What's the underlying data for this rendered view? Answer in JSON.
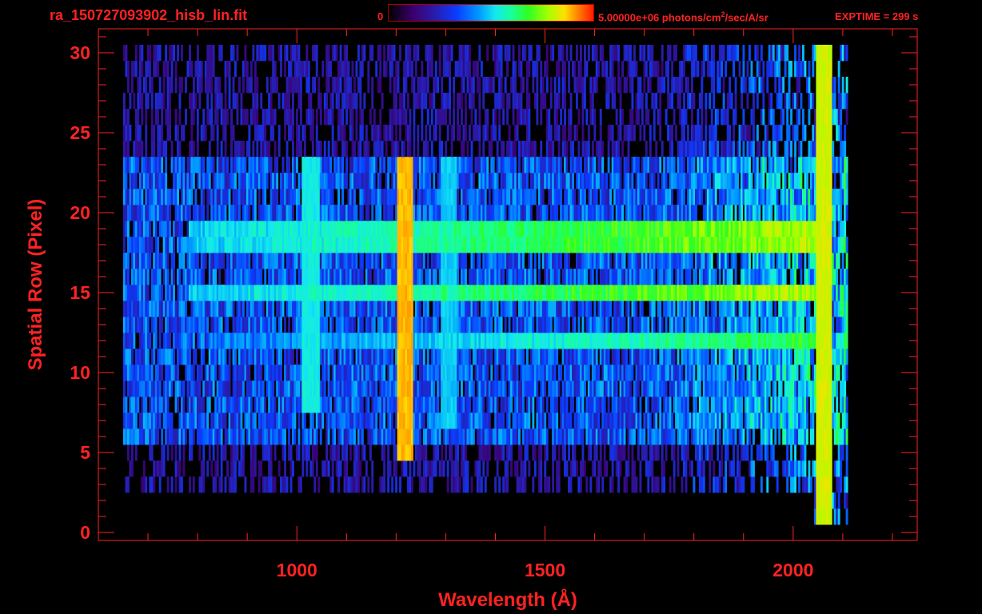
{
  "header": {
    "filename": "ra_150727093902_hisb_lin.fit",
    "colorbar_min": "0",
    "colorbar_max_value": "5.00000e+06 photons/cm",
    "colorbar_max_sup": "2",
    "colorbar_max_unit": "/sec/A/sr",
    "exptime": "EXPTIME = 299 s"
  },
  "colors": {
    "axis": "#ff2222",
    "background": "#000000",
    "colormap": [
      "#000000",
      "#3a0070",
      "#2a1aa8",
      "#0a3cff",
      "#0098ff",
      "#14e8f0",
      "#19ff9a",
      "#2cff24",
      "#a6ff00",
      "#ffdf00",
      "#ff7a00",
      "#ff1a00"
    ]
  },
  "chart_data": {
    "type": "heatmap",
    "title": "ra_150727093902_hisb_lin.fit",
    "xlabel": "Wavelength (Å)",
    "ylabel": "Spatial Row (Pixel)",
    "xlim": [
      600,
      2250
    ],
    "ylim": [
      -0.5,
      31.5
    ],
    "xticks": [
      1000,
      1500,
      2000
    ],
    "yticks": [
      0,
      5,
      10,
      15,
      20,
      25,
      30
    ],
    "colorbar": {
      "min": 0,
      "max": 5000000,
      "unit": "photons/cm^2/sec/A/sr"
    },
    "rows": {
      "count": 32,
      "signal_rows": [
        6,
        23
      ],
      "noise_rows": [
        3,
        30
      ]
    },
    "wavelength_coverage": [
      650,
      2110
    ],
    "features": [
      {
        "name": "strong emission line",
        "wavelength": 1216,
        "rows": [
          5,
          23
        ],
        "level": 0.88
      },
      {
        "name": "emission line",
        "wavelength": 1026,
        "rows": [
          8,
          23
        ],
        "level": 0.5
      },
      {
        "name": "emission line",
        "wavelength": 1304,
        "rows": [
          7,
          23
        ],
        "level": 0.45
      },
      {
        "name": "bright continuum rows",
        "rows": [
          18,
          19,
          15
        ],
        "wavelength_range": [
          780,
          2060
        ],
        "level": 0.62
      },
      {
        "name": "continuum row",
        "rows": [
          12
        ],
        "wavelength_range": [
          820,
          2060
        ],
        "level": 0.5
      },
      {
        "name": "detector edge",
        "wavelength": 2060,
        "rows": [
          1,
          30
        ],
        "level": 0.8
      }
    ]
  }
}
